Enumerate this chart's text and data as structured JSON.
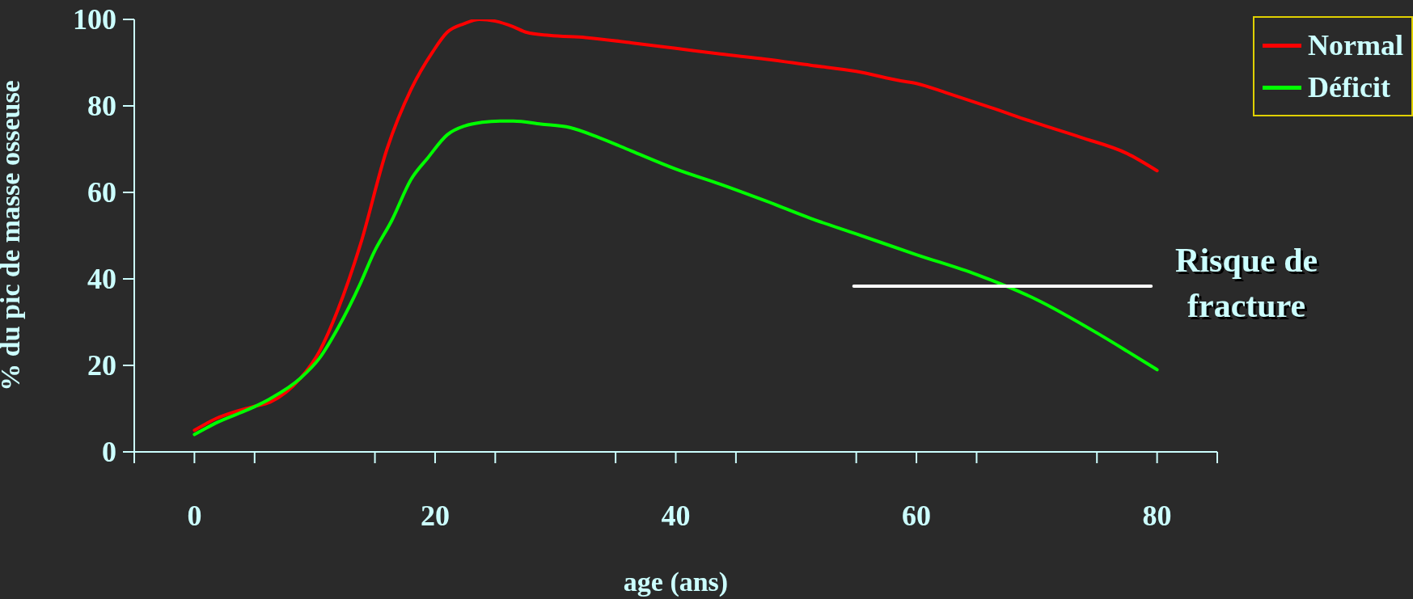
{
  "chart_data": {
    "type": "line",
    "xlabel": "age (ans)",
    "ylabel": "% du pic de masse osseuse",
    "xlim": [
      -5,
      85
    ],
    "xticks": [
      {
        "value": -5,
        "label": null
      },
      0,
      {
        "value": 5,
        "label": null
      },
      {
        "value": 15,
        "label": null
      },
      20,
      {
        "value": 25,
        "label": null
      },
      {
        "value": 35,
        "label": null
      },
      40,
      {
        "value": 45,
        "label": null
      },
      {
        "value": 55,
        "label": null
      },
      60,
      {
        "value": 65,
        "label": null
      },
      {
        "value": 75,
        "label": null
      },
      80,
      {
        "value": 85,
        "label": null
      }
    ],
    "ylim": [
      0,
      100
    ],
    "yticks": [
      0,
      20,
      40,
      60,
      80,
      100
    ],
    "grid": false,
    "legend": "top right",
    "marker": "none",
    "line_style": "solid",
    "series": [
      {
        "name": "Normal",
        "color": "#ff0000",
        "x": [
          0,
          1.8,
          4.8,
          6.3,
          8.8,
          10.4,
          11.9,
          13.8,
          16,
          18,
          19.8,
          21,
          22.4,
          23.7,
          25,
          26.5,
          27.6,
          29.5,
          32.5,
          36.3,
          40,
          43.7,
          47.5,
          51.2,
          55,
          58.7,
          60,
          62.5,
          66.2,
          70,
          73.7,
          77.5,
          80
        ],
        "values": [
          5,
          7.7,
          10.4,
          11.5,
          17,
          23.3,
          32.7,
          48,
          70,
          83.8,
          92.5,
          97,
          99,
          100,
          99.6,
          98.3,
          97,
          96.3,
          95.8,
          94.6,
          93.3,
          92,
          90.8,
          89.4,
          88,
          85.8,
          85.2,
          83,
          79.6,
          76,
          72.7,
          69,
          65
        ]
      },
      {
        "name": "Déficit",
        "color": "#00ff00",
        "x": [
          0,
          1.8,
          4.8,
          6.3,
          8.8,
          10.4,
          11.9,
          13.8,
          14.9,
          16.4,
          18,
          19.4,
          21,
          22.5,
          23.9,
          25.4,
          26.5,
          28.8,
          31.2,
          33.6,
          36.3,
          40,
          43.7,
          47.5,
          51.2,
          55,
          60,
          65,
          70,
          75,
          77.5,
          80
        ],
        "values": [
          4,
          6.7,
          10.2,
          12.3,
          17,
          21.7,
          28.5,
          39,
          46,
          53.5,
          63,
          68,
          73.3,
          75.4,
          76.2,
          76.5,
          76.5,
          75.8,
          75,
          72.7,
          69.6,
          65.4,
          61.9,
          58,
          54,
          50.4,
          45.6,
          41,
          35.2,
          27.5,
          23.3,
          19
        ]
      },
      {
        "color": "#ffffff",
        "x": [
          54.8,
          79.5
        ],
        "values": [
          38.3,
          38.3
        ]
      }
    ],
    "annotations": [
      {
        "text": "Risque de\nfracture",
        "x": 79.5,
        "y": 38.3
      }
    ]
  }
}
